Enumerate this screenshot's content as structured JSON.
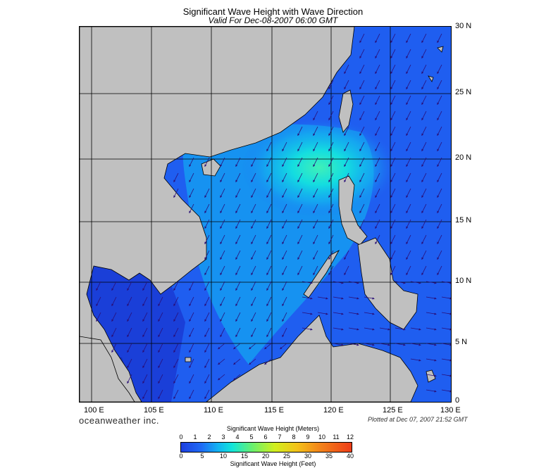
{
  "title": "Significant Wave Height with Wave Direction",
  "subtitle": "Valid For Dec-08-2007 06:00 GMT",
  "latitude_labels": [
    "30 N",
    "25 N",
    "20 N",
    "15 N",
    "10 N",
    "5 N",
    "0"
  ],
  "longitude_labels": [
    "100 E",
    "105 E",
    "110 E",
    "115 E",
    "120 E",
    "125 E",
    "130 E"
  ],
  "brand": "oceanweather inc.",
  "plotted": "Plotted at Dec 07, 2007 21:52 GMT",
  "colorbar": {
    "title_top": "Significant Wave Height (Meters)",
    "meters": [
      "0",
      "1",
      "2",
      "3",
      "4",
      "5",
      "6",
      "7",
      "8",
      "9",
      "10",
      "11",
      "12"
    ],
    "feet": [
      "0",
      "5",
      "10",
      "15",
      "20",
      "25",
      "30",
      "35",
      "40"
    ],
    "title_bottom": "Significant Wave Height (Feet)"
  },
  "colors": {
    "land": "#c0c0c0",
    "deep_sea": "#1d3fe0",
    "mid_sea": "#1f6bf5",
    "light_sea": "#12b5f2",
    "peak_sea": "#12e5da"
  }
}
